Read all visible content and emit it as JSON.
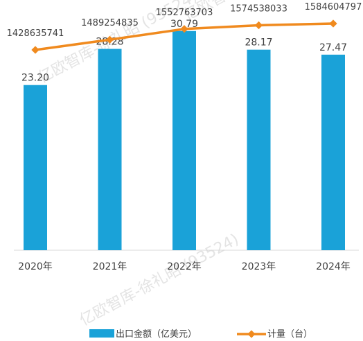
{
  "chart_data": {
    "type": "bar",
    "categories": [
      "2020年",
      "2021年",
      "2022年",
      "2023年",
      "2024年"
    ],
    "series": [
      {
        "name": "出口金额（亿美元）",
        "type": "bar",
        "color": "#1aa2d8",
        "values": [
          23.2,
          28.28,
          30.79,
          28.17,
          27.47
        ],
        "labels": [
          "23.20",
          "28.28",
          "30.79",
          "28.17",
          "27.47"
        ]
      },
      {
        "name": "计量（台）",
        "type": "line",
        "color": "#f08a1e",
        "values": [
          1428635741,
          1489254835,
          1552763703,
          1574538033,
          1584604797
        ],
        "labels": [
          "1428635741",
          "1489254835",
          "1552763703",
          "1574538033",
          "1584604797"
        ]
      }
    ],
    "ylim_bar": [
      0,
      33.2
    ],
    "ylim_line": [
      0,
      1700000000
    ],
    "legend": "bottom",
    "grid": false,
    "watermark": [
      "亿欧智库-徐礼昭 (93524)",
      "亿欧智库-徐礼昭 (93524)",
      "亿欧智库-徐礼昭 (93524)"
    ]
  }
}
